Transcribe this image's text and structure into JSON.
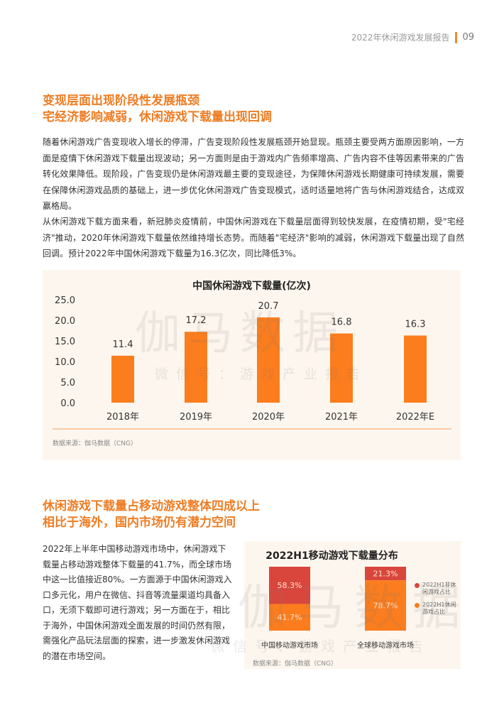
{
  "header": {
    "report_title": "2022年休闲游戏发展报告",
    "page_number": "09"
  },
  "section1": {
    "heading_line1": "变现层面出现阶段性发展瓶颈",
    "heading_line2": "宅经济影响减弱，休闲游戏下载量出现回调",
    "para1": "随着休闲游戏广告变现收入增长的停滞，广告变现阶段性发展瓶颈开始显现。瓶颈主要受两方面原因影响，一方面是疫情下休闲游戏下载量出现波动；另一方面则是由于游戏内广告频率增高、广告内容不佳等因素带来的广告转化效果降低。现阶段，广告变现仍是休闲游戏最主要的变现途径，为保障休闲游戏长期健康可持续发展，需要在保障休闲游戏品质的基础上，进一步优化休闲游戏广告变现模式，适时适量地将广告与休闲游戏结合，达成双赢格局。",
    "para2": "从休闲游戏下载方面来看，新冠肺炎疫情前，中国休闲游戏在下载量层面得到较快发展，在疫情初期，受\"宅经济\"推动，2020年休闲游戏下载量依然维持增长态势。而随着\"宅经济\"影响的减弱，休闲游戏下载量出现了自然回调。预计2022年中国休闲游戏下载量为16.3亿次，同比降低3%。"
  },
  "chart_data": [
    {
      "type": "bar",
      "title": "中国休闲游戏下载量(亿次)",
      "categories": [
        "2018年",
        "2019年",
        "2020年",
        "2021年",
        "2022年E"
      ],
      "values": [
        11.4,
        17.2,
        20.7,
        16.8,
        16.3
      ],
      "yticks": [
        "25.0",
        "20.0",
        "15.0",
        "10.0",
        "5.0",
        "0.0"
      ],
      "ylim": [
        0,
        25
      ],
      "grid": false,
      "color": "#fb7d1d",
      "source": "数据来源：伽马数据（CNG）"
    },
    {
      "type": "bar",
      "stacked": true,
      "title": "2022H1移动游戏下载量分布",
      "categories": [
        "中国移动游戏市场",
        "全球移动游戏市场"
      ],
      "series": [
        {
          "name": "2022H1休闲游戏占比",
          "values": [
            41.7,
            78.7
          ],
          "labels": [
            "41.7%",
            "78.7%"
          ],
          "color": "#fb7d1d"
        },
        {
          "name": "2022H1非休闲游戏占比",
          "values": [
            58.3,
            21.3
          ],
          "labels": [
            "58.3%",
            "21.3%"
          ],
          "color": "#d9463c"
        }
      ],
      "legend_position": "right",
      "source": "数据来源：伽马数据（CNG）"
    }
  ],
  "section2": {
    "heading_line1": "休闲游戏下载量占移动游戏整体四成以上",
    "heading_line2": "相比于海外，国内市场仍有潜力空间",
    "para": "2022年上半年中国移动游戏市场中，休闲游戏下载量占移动游戏整体下载量的41.7%，而全球市场中这一比值接近80%。一方面源于中国休闲游戏入口多元化，用户在微信、抖音等流量渠道均具备入口，无须下载即可进行游戏；另一方面在于，相比于海外，中国休闲游戏全面发展的时间仍然有限，需强化产品玩法层面的探索，进一步激发休闲游戏的潜在市场空间。"
  },
  "watermark": {
    "logo": "伽马数据",
    "tagline": "微信号：游戏产业报告"
  }
}
